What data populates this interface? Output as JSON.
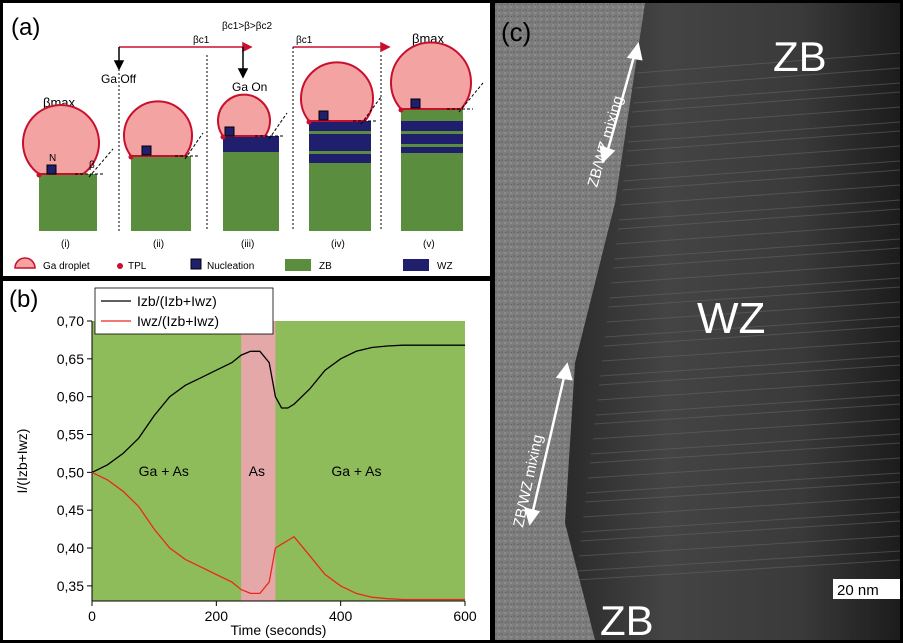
{
  "panel_a": {
    "label": "(a)",
    "stage_labels": [
      "(i)",
      "(ii)",
      "(iii)",
      "(iv)",
      "(v)"
    ],
    "top_labels": {
      "ga_off": "Ga Off",
      "ga_on": "Ga On",
      "beta_c1_left": "βc1",
      "beta_cond": "βc1>β>βc2",
      "beta_c1_right": "βc1",
      "beta_max_right": "βmax"
    },
    "beta_max_left": "βmax",
    "n_label": "N",
    "beta_label": "β",
    "legend": [
      "Ga droplet",
      "TPL",
      "Nucleation",
      "ZB",
      "WZ"
    ],
    "colors": {
      "droplet": "#f4a3a3",
      "droplet_edge": "#c8102e",
      "zb": "#5b8d3e",
      "wz": "#1f1f6e",
      "arrow": "#c8102e"
    }
  },
  "panel_b": {
    "label": "(b)",
    "regions": [
      "Ga + As",
      "As",
      "Ga + As"
    ],
    "colors": {
      "bg_green": "#8fbc5a",
      "bg_pink": "#e5a8a8",
      "series1": "#000000",
      "series2": "#e8281c"
    }
  },
  "chart_data": {
    "type": "line",
    "xlabel": "Time (seconds)",
    "ylabel": "I/(Izb+Iwz)",
    "xlim": [
      0,
      600
    ],
    "ylim": [
      0.33,
      0.7
    ],
    "xticks": [
      "0",
      "200",
      "400",
      "600"
    ],
    "yticks": [
      "0,35",
      "0,40",
      "0,45",
      "0,50",
      "0,55",
      "0,60",
      "0,65",
      "0,70"
    ],
    "shaded_interval": [
      240,
      295
    ],
    "legend_position": "top-left",
    "series": [
      {
        "name": "Izb/(Izb+Iwz)",
        "x": [
          0,
          25,
          50,
          75,
          100,
          125,
          150,
          175,
          200,
          225,
          240,
          255,
          270,
          285,
          295,
          305,
          315,
          325,
          350,
          375,
          400,
          425,
          450,
          475,
          500,
          525,
          550,
          575,
          600
        ],
        "values": [
          0.5,
          0.51,
          0.525,
          0.545,
          0.575,
          0.6,
          0.615,
          0.625,
          0.635,
          0.645,
          0.655,
          0.66,
          0.66,
          0.645,
          0.6,
          0.585,
          0.585,
          0.59,
          0.61,
          0.635,
          0.65,
          0.66,
          0.665,
          0.667,
          0.668,
          0.668,
          0.668,
          0.668,
          0.668
        ]
      },
      {
        "name": "Iwz/(Izb+Iwz)",
        "x": [
          0,
          25,
          50,
          75,
          100,
          125,
          150,
          175,
          200,
          225,
          240,
          255,
          270,
          285,
          295,
          305,
          315,
          325,
          350,
          375,
          400,
          425,
          450,
          475,
          500,
          525,
          550,
          575,
          600
        ],
        "values": [
          0.5,
          0.49,
          0.475,
          0.455,
          0.425,
          0.4,
          0.385,
          0.375,
          0.365,
          0.355,
          0.345,
          0.34,
          0.34,
          0.355,
          0.4,
          0.405,
          0.41,
          0.415,
          0.39,
          0.365,
          0.35,
          0.34,
          0.335,
          0.333,
          0.332,
          0.332,
          0.332,
          0.332,
          0.332
        ]
      }
    ]
  },
  "panel_c": {
    "label": "(c)",
    "zb_top": "ZB",
    "wz": "WZ",
    "zb_bottom": "ZB",
    "mixing_top": "ZB/WZ mixing",
    "mixing_bottom": "ZB/WZ mixing",
    "scale_bar": "20 nm"
  }
}
